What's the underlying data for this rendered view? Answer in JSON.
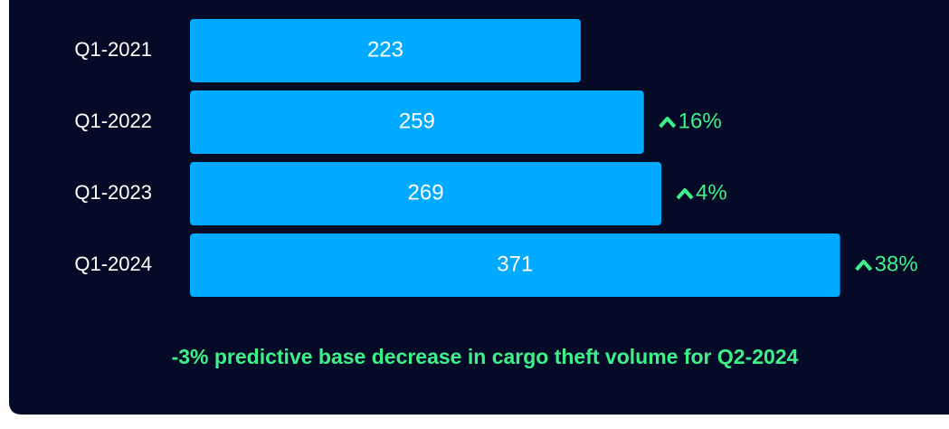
{
  "chart_data": {
    "type": "bar",
    "orientation": "horizontal",
    "categories": [
      "Q1-2021",
      "Q1-2022",
      "Q1-2023",
      "Q1-2024"
    ],
    "values": [
      223,
      259,
      269,
      371
    ],
    "color": "#00aaff",
    "changes": [
      null,
      16,
      4,
      38
    ],
    "change_labels": [
      null,
      "16%",
      "4%",
      "38%"
    ],
    "change_color": "#3ef08a",
    "note": "-3% predictive base decrease in cargo theft volume for Q2-2024"
  }
}
